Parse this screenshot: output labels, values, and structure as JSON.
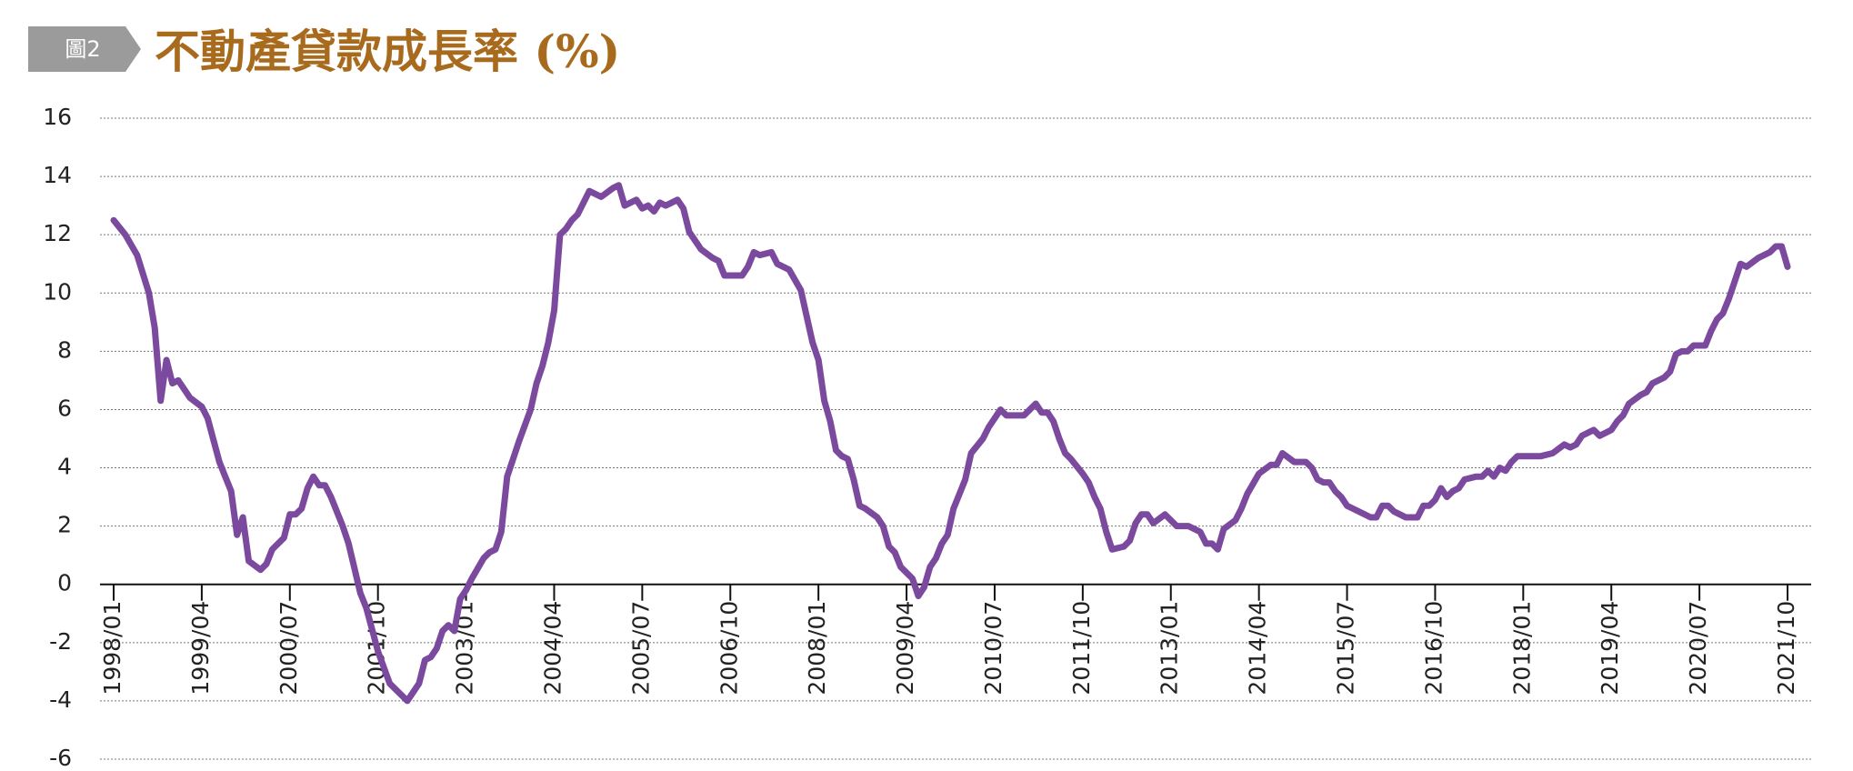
{
  "chart_data": {
    "type": "line",
    "badge": "圖2",
    "title": "不動產貸款成長率 (%)",
    "x": [
      "1998/01",
      "1998/03",
      "1998/05",
      "1998/07",
      "1998/08",
      "1998/09",
      "1998/10",
      "1998/11",
      "1998/12",
      "1999/02",
      "1999/04",
      "1999/05",
      "1999/07",
      "1999/08",
      "1999/09",
      "1999/10",
      "1999/11",
      "1999/12",
      "2000/02",
      "2000/03",
      "2000/04",
      "2000/06",
      "2000/07",
      "2000/08",
      "2000/09",
      "2000/10",
      "2000/11",
      "2000/12",
      "2001/01",
      "2001/02",
      "2001/04",
      "2001/05",
      "2001/07",
      "2001/08",
      "2001/10",
      "2001/12",
      "2002/03",
      "2002/05",
      "2002/06",
      "2002/07",
      "2002/08",
      "2002/09",
      "2002/10",
      "2002/11",
      "2002/12",
      "2003/01",
      "2003/02",
      "2003/04",
      "2003/05",
      "2003/06",
      "2003/07",
      "2003/08",
      "2003/09",
      "2003/10",
      "2003/12",
      "2004/01",
      "2004/02",
      "2004/03",
      "2004/04",
      "2004/05",
      "2004/06",
      "2004/07",
      "2004/08",
      "2004/10",
      "2004/12",
      "2005/02",
      "2005/03",
      "2005/04",
      "2005/06",
      "2005/07",
      "2005/08",
      "2005/09",
      "2005/10",
      "2005/11",
      "2006/01",
      "2006/02",
      "2006/03",
      "2006/05",
      "2006/07",
      "2006/08",
      "2006/09",
      "2006/12",
      "2007/01",
      "2007/02",
      "2007/03",
      "2007/05",
      "2007/06",
      "2007/08",
      "2007/10",
      "2007/11",
      "2007/12",
      "2008/01",
      "2008/02",
      "2008/03",
      "2008/04",
      "2008/05",
      "2008/06",
      "2008/07",
      "2008/08",
      "2008/09",
      "2008/11",
      "2008/12",
      "2009/01",
      "2009/02",
      "2009/03",
      "2009/05",
      "2009/06",
      "2009/07",
      "2009/08",
      "2009/09",
      "2009/10",
      "2009/11",
      "2009/12",
      "2010/01",
      "2010/02",
      "2010/03",
      "2010/05",
      "2010/06",
      "2010/08",
      "2010/09",
      "2010/12",
      "2011/02",
      "2011/03",
      "2011/04",
      "2011/05",
      "2011/06",
      "2011/07",
      "2011/08",
      "2011/10",
      "2011/11",
      "2011/12",
      "2012/01",
      "2012/02",
      "2012/03",
      "2012/05",
      "2012/06",
      "2012/07",
      "2012/08",
      "2012/09",
      "2012/10",
      "2012/12",
      "2013/01",
      "2013/02",
      "2013/04",
      "2013/06",
      "2013/07",
      "2013/08",
      "2013/09",
      "2013/10",
      "2013/12",
      "2014/01",
      "2014/02",
      "2014/04",
      "2014/06",
      "2014/07",
      "2014/08",
      "2014/10",
      "2014/12",
      "2015/01",
      "2015/02",
      "2015/03",
      "2015/04",
      "2015/05",
      "2015/06",
      "2015/07",
      "2015/10",
      "2015/11",
      "2015/12",
      "2016/01",
      "2016/02",
      "2016/03",
      "2016/04",
      "2016/05",
      "2016/07",
      "2016/08",
      "2016/09",
      "2016/10",
      "2016/11",
      "2016/12",
      "2017/01",
      "2017/02",
      "2017/03",
      "2017/05",
      "2017/06",
      "2017/07",
      "2017/08",
      "2017/09",
      "2017/10",
      "2017/11",
      "2017/12",
      "2018/04",
      "2018/06",
      "2018/08",
      "2018/09",
      "2018/10",
      "2018/11",
      "2019/01",
      "2019/02",
      "2019/03",
      "2019/04",
      "2019/05",
      "2019/06",
      "2019/07",
      "2019/09",
      "2019/10",
      "2019/11",
      "2020/01",
      "2020/02",
      "2020/03",
      "2020/04",
      "2020/05",
      "2020/06",
      "2020/08",
      "2020/09",
      "2020/10",
      "2020/11",
      "2020/12",
      "2021/01",
      "2021/02",
      "2021/03",
      "2021/05",
      "2021/07",
      "2021/08",
      "2021/09",
      "2021/10"
    ],
    "series": [
      {
        "color": "#7b4a9e",
        "values": [
          12.5,
          12.0,
          11.3,
          10.0,
          8.8,
          6.3,
          7.7,
          6.9,
          7.0,
          6.4,
          6.1,
          5.7,
          4.2,
          3.7,
          3.2,
          1.7,
          2.3,
          0.8,
          0.5,
          0.7,
          1.2,
          1.6,
          2.4,
          2.4,
          2.6,
          3.3,
          3.7,
          3.4,
          3.4,
          3.0,
          2.0,
          1.4,
          -0.3,
          -0.8,
          -2.3,
          -3.4,
          -4.0,
          -3.4,
          -2.6,
          -2.5,
          -2.2,
          -1.6,
          -1.4,
          -1.6,
          -0.5,
          -0.2,
          0.2,
          0.9,
          1.1,
          1.2,
          1.8,
          3.7,
          4.3,
          4.9,
          6.0,
          6.9,
          7.5,
          8.3,
          9.4,
          12.0,
          12.2,
          12.5,
          12.7,
          13.5,
          13.3,
          13.6,
          13.7,
          13.0,
          13.2,
          12.9,
          13.0,
          12.8,
          13.1,
          13.0,
          13.2,
          12.9,
          12.1,
          11.5,
          11.2,
          11.1,
          10.6,
          10.6,
          10.9,
          11.4,
          11.3,
          11.4,
          11.0,
          10.8,
          10.1,
          9.2,
          8.3,
          7.7,
          6.3,
          5.6,
          4.6,
          4.4,
          4.3,
          3.6,
          2.7,
          2.6,
          2.3,
          2.0,
          1.3,
          1.1,
          0.6,
          0.2,
          -0.4,
          -0.1,
          0.6,
          0.9,
          1.4,
          1.7,
          2.6,
          3.1,
          3.6,
          4.5,
          5.0,
          5.4,
          6.0,
          5.8,
          5.8,
          6.2,
          5.9,
          5.9,
          5.6,
          5.0,
          4.5,
          4.3,
          3.8,
          3.5,
          3.0,
          2.6,
          1.8,
          1.2,
          1.3,
          1.5,
          2.1,
          2.4,
          2.4,
          2.1,
          2.4,
          2.2,
          2.0,
          2.0,
          1.8,
          1.4,
          1.4,
          1.2,
          1.9,
          2.2,
          2.6,
          3.1,
          3.8,
          4.1,
          4.1,
          4.5,
          4.2,
          4.2,
          4.0,
          3.6,
          3.5,
          3.5,
          3.2,
          3.0,
          2.7,
          2.4,
          2.3,
          2.3,
          2.7,
          2.7,
          2.5,
          2.4,
          2.3,
          2.3,
          2.7,
          2.7,
          2.9,
          3.3,
          3.0,
          3.2,
          3.3,
          3.6,
          3.7,
          3.7,
          3.9,
          3.7,
          4.0,
          3.9,
          4.2,
          4.4,
          4.4,
          4.5,
          4.8,
          4.7,
          4.8,
          5.1,
          5.3,
          5.1,
          5.2,
          5.3,
          5.6,
          5.8,
          6.2,
          6.5,
          6.6,
          6.9,
          7.1,
          7.3,
          7.9,
          8.0,
          8.0,
          8.2,
          8.2,
          8.7,
          9.1,
          9.3,
          9.8,
          10.4,
          11.0,
          10.9,
          11.2,
          11.4,
          11.6,
          11.6,
          10.9
        ]
      }
    ],
    "xlim": [
      "1998/01",
      "2021/10"
    ],
    "xticks": [
      "1998/01",
      "1999/04",
      "2000/07",
      "2001/10",
      "2003/01",
      "2004/04",
      "2005/07",
      "2006/10",
      "2008/01",
      "2009/04",
      "2010/07",
      "2011/10",
      "2013/01",
      "2014/04",
      "2015/07",
      "2016/10",
      "2018/01",
      "2019/04",
      "2020/07",
      "2021/10"
    ],
    "ylim": [
      -6,
      16
    ],
    "yticks": [
      -6,
      -4,
      -2,
      0,
      2,
      4,
      6,
      8,
      10,
      12,
      14,
      16
    ],
    "grid": true
  }
}
